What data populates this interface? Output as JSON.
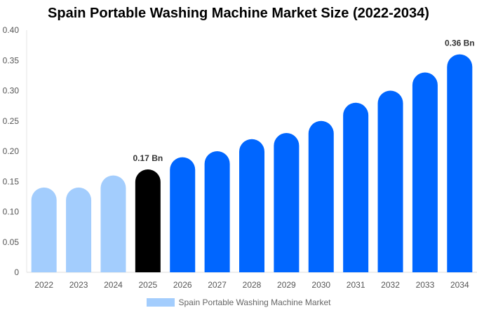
{
  "chart_data": {
    "type": "bar",
    "title": "Spain Portable Washing Machine Market Size (2022-2034)",
    "categories": [
      "2022",
      "2023",
      "2024",
      "2025",
      "2026",
      "2027",
      "2028",
      "2029",
      "2030",
      "2031",
      "2032",
      "2033",
      "2034"
    ],
    "series": [
      {
        "name": "Spain Portable Washing Machine Market",
        "values": [
          0.14,
          0.14,
          0.16,
          0.17,
          0.19,
          0.2,
          0.22,
          0.23,
          0.25,
          0.28,
          0.3,
          0.33,
          0.36
        ]
      }
    ],
    "ylim": [
      0,
      0.4
    ],
    "yticks": [
      "0",
      "0.05",
      "0.10",
      "0.15",
      "0.20",
      "0.25",
      "0.30",
      "0.35",
      "0.40"
    ],
    "data_labels": {
      "2025": "0.17 Bn",
      "2034": "0.36 Bn"
    },
    "colors": {
      "historical": "#a3cdfd",
      "current": "#000000",
      "forecast": "#0066ff"
    },
    "legend_position": "bottom",
    "grid": false
  }
}
